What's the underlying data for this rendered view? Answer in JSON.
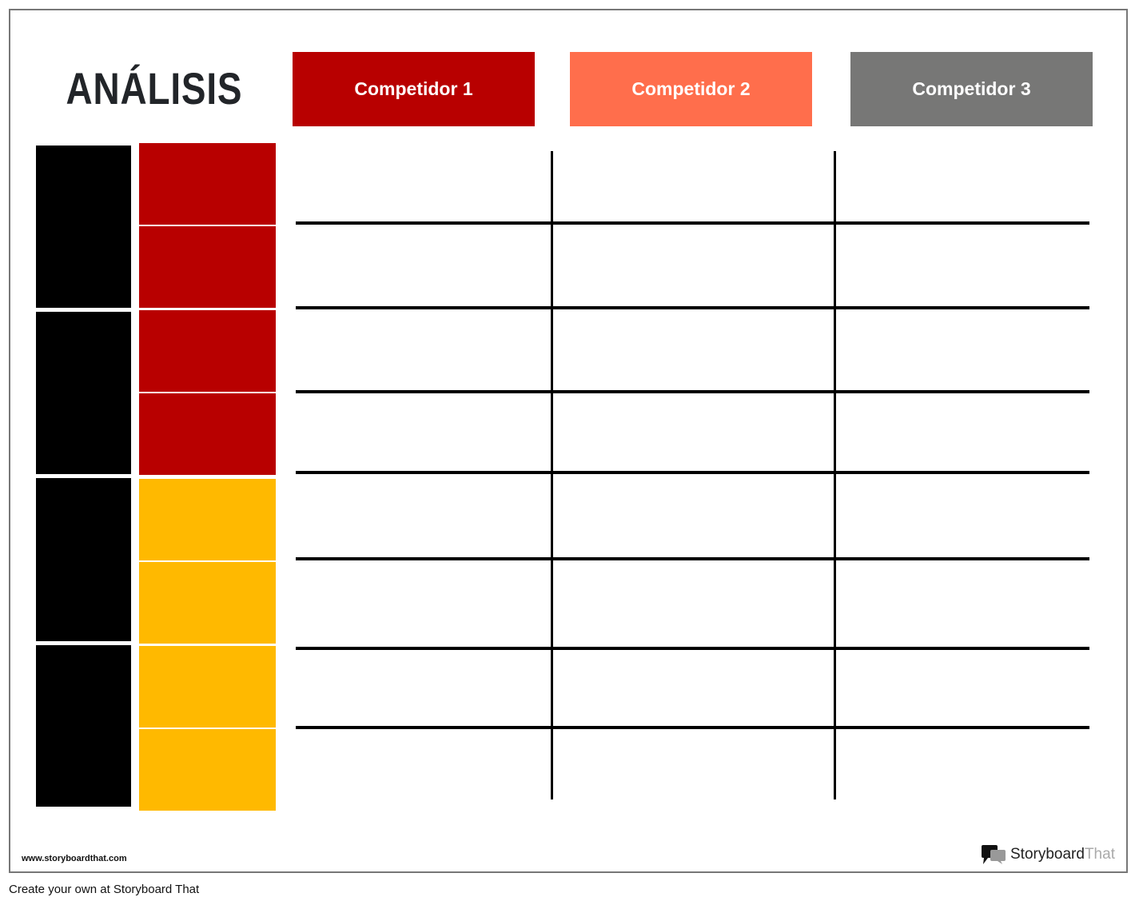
{
  "title": "ANÁLISIS",
  "competitors": [
    {
      "label": "Competidor 1",
      "color": "#b80000"
    },
    {
      "label": "Competidor 2",
      "color": "#ff6e4c"
    },
    {
      "label": "Competidor 3",
      "color": "#777776"
    }
  ],
  "colors": {
    "red": "#b80000",
    "yellow": "#ffb900",
    "black": "#000000"
  },
  "footer": {
    "url": "www.storyboardthat.com",
    "logo_main": "Storyboard",
    "logo_accent": "That",
    "create": "Create your own at Storyboard That"
  }
}
